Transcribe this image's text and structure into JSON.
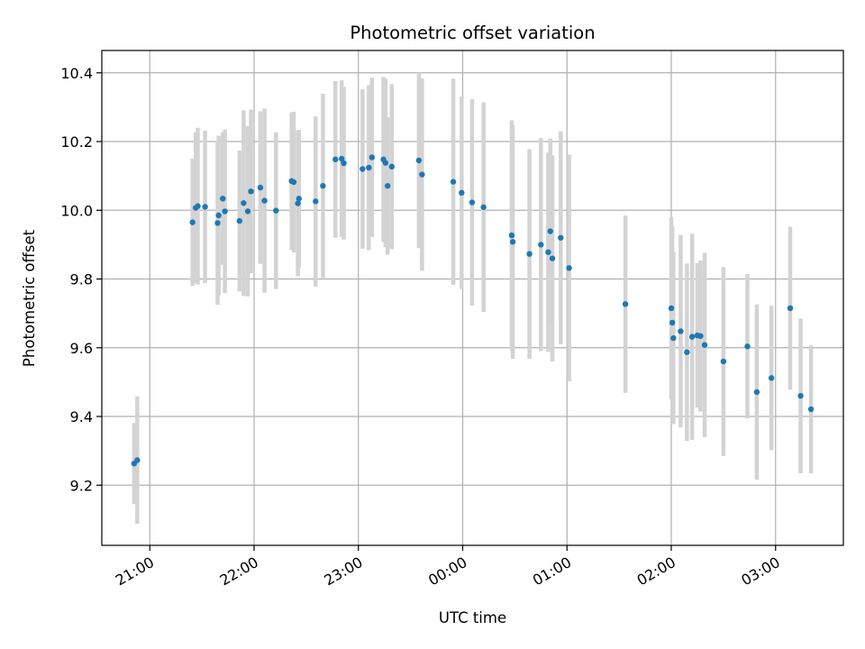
{
  "chart_data": {
    "type": "scatter",
    "title": "Photometric offset variation",
    "xlabel": "UTC time",
    "ylabel": "Photometric offset",
    "x_unit": "hours after 00:00 UTC (negative = previous evening)",
    "xlim": [
      -3.46,
      3.65
    ],
    "ylim": [
      9.025,
      10.465
    ],
    "yticks": [
      9.2,
      9.4,
      9.6,
      9.8,
      10.0,
      10.2,
      10.4
    ],
    "ytick_labels": [
      "9.2",
      "9.4",
      "9.6",
      "9.8",
      "10.0",
      "10.2",
      "10.4"
    ],
    "xticks": [
      -3,
      -2,
      -1,
      0,
      1,
      2,
      3
    ],
    "xtick_labels": [
      "21:00",
      "22:00",
      "23:00",
      "00:00",
      "01:00",
      "02:00",
      "03:00"
    ],
    "grid": true,
    "marker_color": "#1f77b4",
    "errorbar_color": "#d3d3d3",
    "points": [
      {
        "x": -3.15,
        "y": 9.263,
        "err": 0.118
      },
      {
        "x": -3.12,
        "y": 9.273,
        "err": 0.185
      },
      {
        "x": -2.59,
        "y": 9.965,
        "err": 0.185
      },
      {
        "x": -2.56,
        "y": 10.007,
        "err": 0.22
      },
      {
        "x": -2.54,
        "y": 10.012,
        "err": 0.228
      },
      {
        "x": -2.47,
        "y": 10.01,
        "err": 0.222
      },
      {
        "x": -2.35,
        "y": 9.963,
        "err": 0.238
      },
      {
        "x": -2.34,
        "y": 9.985,
        "err": 0.232
      },
      {
        "x": -2.3,
        "y": 10.034,
        "err": 0.193
      },
      {
        "x": -2.28,
        "y": 9.997,
        "err": 0.238
      },
      {
        "x": -2.14,
        "y": 9.969,
        "err": 0.205
      },
      {
        "x": -2.1,
        "y": 10.021,
        "err": 0.27
      },
      {
        "x": -2.06,
        "y": 9.997,
        "err": 0.248
      },
      {
        "x": -2.03,
        "y": 10.055,
        "err": 0.238
      },
      {
        "x": -1.94,
        "y": 10.066,
        "err": 0.222
      },
      {
        "x": -1.9,
        "y": 10.028,
        "err": 0.268
      },
      {
        "x": -1.79,
        "y": 9.999,
        "err": 0.228
      },
      {
        "x": -1.64,
        "y": 10.085,
        "err": 0.2
      },
      {
        "x": -1.62,
        "y": 10.082,
        "err": 0.205
      },
      {
        "x": -1.58,
        "y": 10.02,
        "err": 0.212
      },
      {
        "x": -1.57,
        "y": 10.034,
        "err": 0.2
      },
      {
        "x": -1.41,
        "y": 10.026,
        "err": 0.248
      },
      {
        "x": -1.34,
        "y": 10.071,
        "err": 0.268
      },
      {
        "x": -1.22,
        "y": 10.148,
        "err": 0.228
      },
      {
        "x": -1.16,
        "y": 10.15,
        "err": 0.228
      },
      {
        "x": -1.14,
        "y": 10.137,
        "err": 0.222
      },
      {
        "x": -0.96,
        "y": 10.12,
        "err": 0.232
      },
      {
        "x": -0.9,
        "y": 10.124,
        "err": 0.24
      },
      {
        "x": -0.87,
        "y": 10.154,
        "err": 0.232
      },
      {
        "x": -0.76,
        "y": 10.148,
        "err": 0.24
      },
      {
        "x": -0.74,
        "y": 10.138,
        "err": 0.245
      },
      {
        "x": -0.72,
        "y": 10.071,
        "err": 0.2
      },
      {
        "x": -0.68,
        "y": 10.127,
        "err": 0.24
      },
      {
        "x": -0.42,
        "y": 10.145,
        "err": 0.255
      },
      {
        "x": -0.39,
        "y": 10.104,
        "err": 0.28
      },
      {
        "x": -0.09,
        "y": 10.083,
        "err": 0.3
      },
      {
        "x": -0.01,
        "y": 10.051,
        "err": 0.28
      },
      {
        "x": 0.09,
        "y": 10.023,
        "err": 0.3
      },
      {
        "x": 0.2,
        "y": 10.009,
        "err": 0.305
      },
      {
        "x": 0.47,
        "y": 9.927,
        "err": 0.335
      },
      {
        "x": 0.48,
        "y": 9.908,
        "err": 0.34
      },
      {
        "x": 0.64,
        "y": 9.873,
        "err": 0.305
      },
      {
        "x": 0.75,
        "y": 9.9,
        "err": 0.31
      },
      {
        "x": 0.82,
        "y": 9.878,
        "err": 0.29
      },
      {
        "x": 0.84,
        "y": 9.939,
        "err": 0.27
      },
      {
        "x": 0.86,
        "y": 9.86,
        "err": 0.3
      },
      {
        "x": 0.94,
        "y": 9.92,
        "err": 0.31
      },
      {
        "x": 1.02,
        "y": 9.832,
        "err": 0.33
      },
      {
        "x": 1.56,
        "y": 9.727,
        "err": 0.258
      },
      {
        "x": 2.0,
        "y": 9.715,
        "err": 0.265
      },
      {
        "x": 2.01,
        "y": 9.673,
        "err": 0.28
      },
      {
        "x": 2.02,
        "y": 9.628,
        "err": 0.25
      },
      {
        "x": 2.09,
        "y": 9.648,
        "err": 0.28
      },
      {
        "x": 2.15,
        "y": 9.587,
        "err": 0.258
      },
      {
        "x": 2.2,
        "y": 9.632,
        "err": 0.3
      },
      {
        "x": 2.25,
        "y": 9.636,
        "err": 0.21
      },
      {
        "x": 2.28,
        "y": 9.634,
        "err": 0.22
      },
      {
        "x": 2.32,
        "y": 9.608,
        "err": 0.268
      },
      {
        "x": 2.5,
        "y": 9.56,
        "err": 0.275
      },
      {
        "x": 2.73,
        "y": 9.604,
        "err": 0.21
      },
      {
        "x": 2.82,
        "y": 9.471,
        "err": 0.255
      },
      {
        "x": 2.96,
        "y": 9.512,
        "err": 0.21
      },
      {
        "x": 3.14,
        "y": 9.715,
        "err": 0.237
      },
      {
        "x": 3.24,
        "y": 9.46,
        "err": 0.225
      },
      {
        "x": 3.34,
        "y": 9.421,
        "err": 0.186
      }
    ]
  }
}
